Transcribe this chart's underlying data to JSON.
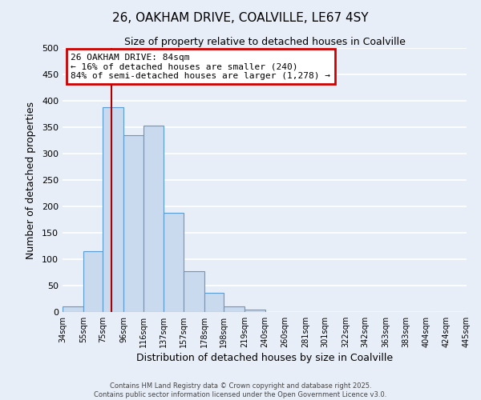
{
  "title": "26, OAKHAM DRIVE, COALVILLE, LE67 4SY",
  "subtitle": "Size of property relative to detached houses in Coalville",
  "xlabel": "Distribution of detached houses by size in Coalville",
  "ylabel": "Number of detached properties",
  "bar_edges": [
    34,
    55,
    75,
    96,
    116,
    137,
    157,
    178,
    198,
    219,
    240,
    260,
    281,
    301,
    322,
    342,
    363,
    383,
    404,
    424,
    445
  ],
  "bar_heights": [
    10,
    115,
    388,
    335,
    353,
    188,
    77,
    36,
    10,
    5,
    0,
    0,
    0,
    0,
    0,
    0,
    0,
    0,
    0,
    0
  ],
  "bar_color": "#c9d9ee",
  "bar_edgecolor": "#5b9bd5",
  "ylim": [
    0,
    500
  ],
  "yticks": [
    0,
    50,
    100,
    150,
    200,
    250,
    300,
    350,
    400,
    450,
    500
  ],
  "property_line_x": 84,
  "property_line_color": "#aa0000",
  "annotation_title": "26 OAKHAM DRIVE: 84sqm",
  "annotation_line1": "← 16% of detached houses are smaller (240)",
  "annotation_line2": "84% of semi-detached houses are larger (1,278) →",
  "annotation_box_color": "#ffffff",
  "annotation_box_edgecolor": "#cc0000",
  "background_color": "#e8eef8",
  "grid_color": "#ffffff",
  "footer1": "Contains HM Land Registry data © Crown copyright and database right 2025.",
  "footer2": "Contains public sector information licensed under the Open Government Licence v3.0."
}
